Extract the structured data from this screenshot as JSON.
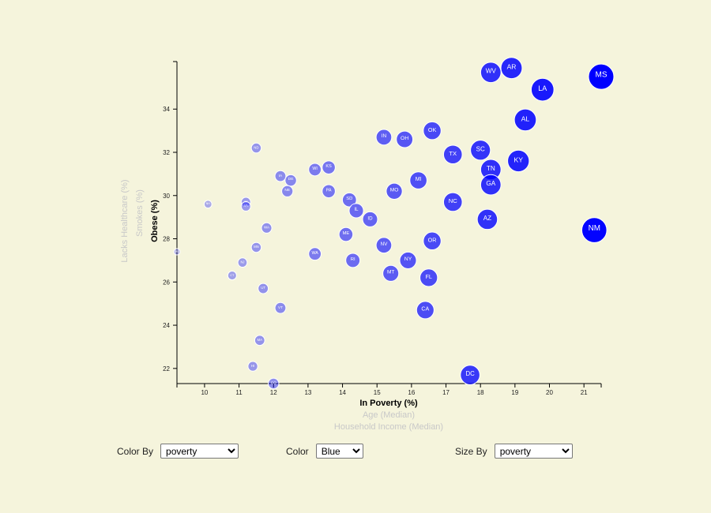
{
  "chart_data": {
    "type": "scatter",
    "xlabel": "In Poverty (%)",
    "x_alt_labels": [
      "Age (Median)",
      "Household Income (Median)"
    ],
    "ylabel": "Obese (%)",
    "y_alt_labels": [
      "Smokes (%)",
      "Lacks Healthcare (%)"
    ],
    "xlim": [
      9.2,
      21.5
    ],
    "ylim": [
      21.3,
      36.2
    ],
    "x_ticks": [
      10,
      11,
      12,
      13,
      14,
      15,
      16,
      17,
      18,
      19,
      20,
      21
    ],
    "y_ticks": [
      22,
      24,
      26,
      28,
      30,
      32,
      34
    ],
    "point_color": "#0000ff",
    "points": [
      {
        "label": "WV",
        "x": 18.3,
        "y": 35.7
      },
      {
        "label": "AR",
        "x": 18.9,
        "y": 35.9
      },
      {
        "label": "MS",
        "x": 21.5,
        "y": 35.5
      },
      {
        "label": "LA",
        "x": 19.8,
        "y": 34.9
      },
      {
        "label": "AL",
        "x": 19.3,
        "y": 33.5
      },
      {
        "label": "OK",
        "x": 16.6,
        "y": 33.0
      },
      {
        "label": "IN",
        "x": 15.2,
        "y": 32.7
      },
      {
        "label": "OH",
        "x": 15.8,
        "y": 32.6
      },
      {
        "label": "SC",
        "x": 18.0,
        "y": 32.1
      },
      {
        "label": "TX",
        "x": 17.2,
        "y": 31.9
      },
      {
        "label": "KY",
        "x": 19.1,
        "y": 31.6
      },
      {
        "label": "TN",
        "x": 18.3,
        "y": 31.2
      },
      {
        "label": "ND",
        "x": 11.5,
        "y": 32.2
      },
      {
        "label": "KS",
        "x": 13.6,
        "y": 31.3
      },
      {
        "label": "WI",
        "x": 13.2,
        "y": 31.2
      },
      {
        "label": "IA",
        "x": 12.2,
        "y": 30.9
      },
      {
        "label": "DE",
        "x": 12.5,
        "y": 30.7
      },
      {
        "label": "MI",
        "x": 16.2,
        "y": 30.7
      },
      {
        "label": "GA",
        "x": 18.3,
        "y": 30.5
      },
      {
        "label": "NE",
        "x": 12.4,
        "y": 30.2
      },
      {
        "label": "PA",
        "x": 13.6,
        "y": 30.2
      },
      {
        "label": "MO",
        "x": 15.5,
        "y": 30.2
      },
      {
        "label": "SD",
        "x": 14.2,
        "y": 29.8
      },
      {
        "label": "NC",
        "x": 17.2,
        "y": 29.7
      },
      {
        "label": "AK",
        "x": 11.2,
        "y": 29.7
      },
      {
        "label": "VA",
        "x": 11.2,
        "y": 29.5
      },
      {
        "label": "NH",
        "x": 10.1,
        "y": 29.6
      },
      {
        "label": "IL",
        "x": 14.4,
        "y": 29.3
      },
      {
        "label": "ID",
        "x": 14.8,
        "y": 28.9
      },
      {
        "label": "AZ",
        "x": 18.2,
        "y": 28.9
      },
      {
        "label": "NM",
        "x": 21.3,
        "y": 28.4
      },
      {
        "label": "WA",
        "x": 11.8,
        "y": 28.5
      },
      {
        "label": "ME",
        "x": 14.1,
        "y": 28.2
      },
      {
        "label": "OR",
        "x": 16.6,
        "y": 27.9
      },
      {
        "label": "NV",
        "x": 15.2,
        "y": 27.7
      },
      {
        "label": "MN",
        "x": 11.5,
        "y": 27.6
      },
      {
        "label": "MD",
        "x": 9.2,
        "y": 27.4
      },
      {
        "label": "WA",
        "x": 13.2,
        "y": 27.3
      },
      {
        "label": "RI",
        "x": 14.3,
        "y": 27.0
      },
      {
        "label": "NY",
        "x": 15.9,
        "y": 27.0
      },
      {
        "label": "NJ",
        "x": 11.1,
        "y": 26.9
      },
      {
        "label": "MT",
        "x": 15.4,
        "y": 26.4
      },
      {
        "label": "CT",
        "x": 10.8,
        "y": 26.3
      },
      {
        "label": "FL",
        "x": 16.5,
        "y": 26.2
      },
      {
        "label": "UT",
        "x": 11.7,
        "y": 25.7
      },
      {
        "label": "CA",
        "x": 16.4,
        "y": 24.7
      },
      {
        "label": "VT",
        "x": 12.2,
        "y": 24.8
      },
      {
        "label": "MA",
        "x": 11.6,
        "y": 23.3
      },
      {
        "label": "HI",
        "x": 11.4,
        "y": 22.1
      },
      {
        "label": "DC",
        "x": 17.7,
        "y": 21.7
      },
      {
        "label": "CO",
        "x": 12.0,
        "y": 21.3
      }
    ]
  },
  "controls": {
    "color_by": {
      "label": "Color By",
      "value": "poverty"
    },
    "color": {
      "label": "Color",
      "value": "Blue"
    },
    "size_by": {
      "label": "Size By",
      "value": "poverty"
    }
  }
}
